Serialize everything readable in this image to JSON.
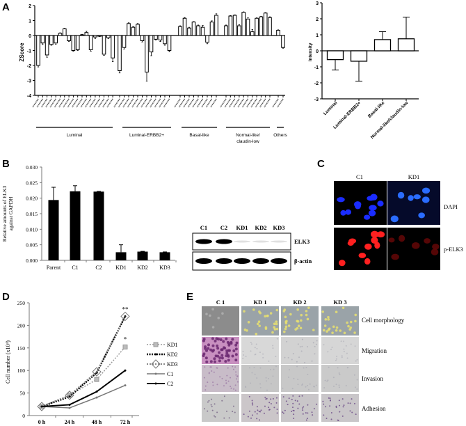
{
  "panel_labels": {
    "a": "A",
    "b": "B",
    "c": "C",
    "d": "D",
    "e": "E"
  },
  "chart_data": [
    {
      "id": "A-left",
      "type": "bar",
      "ylabel": "ZScore",
      "ylim": [
        -4,
        2
      ],
      "yticks": [
        "2",
        "1",
        "0",
        "-1",
        "-2",
        "-3",
        "-4"
      ],
      "groups": [
        {
          "name": "Luminal",
          "values": [
            -2.0,
            -0.5,
            -1.3,
            -0.6,
            -0.5,
            0.15,
            0.45,
            -0.35,
            -1.0,
            -0.95,
            0.05,
            0.2,
            -0.95,
            -0.1,
            -0.05,
            -1.25,
            -0.15,
            -1.5
          ],
          "errors": [
            0.1,
            0.1,
            0.15,
            0.05,
            0.08,
            0.03,
            0.03,
            0.05,
            0.05,
            0.05,
            0.03,
            0.08,
            0.1,
            0.1,
            0.02,
            0.08,
            0.05,
            0.25
          ]
        },
        {
          "name": "Luminal-ERBB2+",
          "values": [
            -2.35,
            -0.8,
            0.8,
            0.55,
            0.75,
            -0.35,
            -2.45,
            -1.1,
            -0.25,
            -0.3,
            -0.55,
            -1.0
          ],
          "errors": [
            0.15,
            0.1,
            0.05,
            0.05,
            0.05,
            0.08,
            0.6,
            0.25,
            0.05,
            0.1,
            0.1,
            0.08
          ]
        },
        {
          "name": "Basal-like",
          "values": [
            0.6,
            1.15,
            0.5,
            0.9,
            0.65,
            0.55,
            -0.45,
            0.9,
            1.35
          ],
          "errors": [
            0.05,
            0.05,
            0.05,
            0.03,
            0.05,
            0.12,
            0.1,
            0.08,
            0.1
          ]
        },
        {
          "name": "Normal-like/ claudin-low",
          "line1": "Normal-like/",
          "line2": "claudin-low",
          "values": [
            0.65,
            1.3,
            1.35,
            0.65,
            1.55,
            1.1,
            0.25,
            1.15,
            1.25,
            1.5,
            1.2
          ],
          "errors": [
            0.05,
            0.03,
            0.03,
            0.08,
            0.03,
            0.08,
            0.15,
            0.03,
            0.03,
            0.03,
            0.05
          ]
        },
        {
          "name": "Others",
          "values": [
            0.35,
            -0.8
          ],
          "errors": [
            0.03,
            0.05
          ]
        }
      ]
    },
    {
      "id": "A-right",
      "type": "bar",
      "ylabel": "Intensity",
      "ylim": [
        -3,
        3
      ],
      "yticks": [
        "3",
        "2",
        "1",
        "0",
        "-1",
        "-2",
        "-3"
      ],
      "categories": [
        "Luminal",
        "Luminal-ERBB2+",
        "Basal-like",
        "Normal-like/claudin-low"
      ],
      "values": [
        -0.55,
        -0.65,
        0.7,
        0.75
      ],
      "error_ends": [
        -1.2,
        -1.9,
        1.2,
        2.1
      ]
    },
    {
      "id": "B",
      "type": "bar",
      "ylabel_line1": "Relative amounts of ELK3",
      "ylabel_line2": "against GAPDH",
      "ylim": [
        0,
        0.03
      ],
      "yticks": [
        "0.030",
        "0.025",
        "0.020",
        "0.015",
        "0.010",
        "0.005",
        "0.000"
      ],
      "categories": [
        "Parent",
        "C1",
        "C2",
        "KD1",
        "KD2",
        "KD3"
      ],
      "values": [
        0.0194,
        0.0222,
        0.0221,
        0.0026,
        0.0028,
        0.0026
      ],
      "errors": [
        0.0041,
        0.0018,
        0.0001,
        0.0024,
        0.0001,
        0.0001
      ]
    },
    {
      "id": "D",
      "type": "line",
      "ylabel": "Cell number (x10⁴)",
      "ylim": [
        0,
        250
      ],
      "yticks": [
        "250",
        "200",
        "150",
        "100",
        "50",
        "0"
      ],
      "x": [
        "0 h",
        "24 h",
        "48 h",
        "72 h"
      ],
      "series": [
        {
          "name": "KD1",
          "values": [
            20,
            45,
            80,
            152
          ]
        },
        {
          "name": "KD2",
          "values": [
            20,
            42,
            95,
            220
          ]
        },
        {
          "name": "KD3",
          "values": [
            20,
            45,
            97,
            220
          ]
        },
        {
          "name": "C1",
          "values": [
            20,
            17,
            40,
            67
          ]
        },
        {
          "name": "C2",
          "values": [
            20,
            24,
            53,
            100
          ]
        }
      ],
      "annotations": [
        "**",
        "*"
      ]
    }
  ],
  "western_blot": {
    "lanes": [
      "C1",
      "C2",
      "KD1",
      "KD2",
      "KD3"
    ],
    "rows": [
      "ELK3",
      "β-actin"
    ],
    "elk3_intensity": [
      1.0,
      1.0,
      0.15,
      0.15,
      0.2
    ]
  },
  "panel_c": {
    "columns": [
      "C1",
      "KD1"
    ],
    "rows": [
      "DAPI",
      "p-ELK3"
    ]
  },
  "panel_e": {
    "columns": [
      "C 1",
      "KD 1",
      "KD 2",
      "KD 3"
    ],
    "rows": [
      "Cell morphology",
      "Migration",
      "Invasion",
      "Adhesion"
    ]
  }
}
